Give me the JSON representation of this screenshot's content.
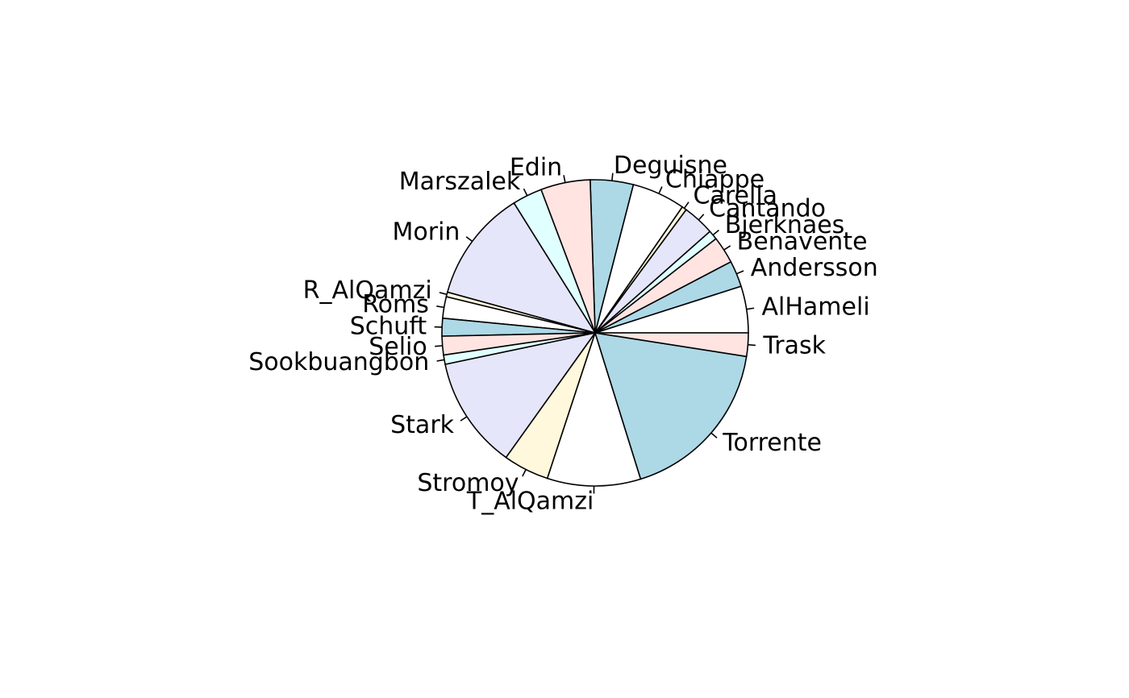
{
  "chart_data": {
    "type": "pie",
    "start": "3 o'clock",
    "direction": "counter-clockwise",
    "title": "",
    "categories": [
      "AlHameli",
      "Andersson",
      "Benavente",
      "Bjerknaes",
      "Cantando",
      "Carella",
      "Chiappe",
      "Deguisne",
      "Edin",
      "Marszalek",
      "Morin",
      "R_AlQamzi",
      "Roms",
      "Schuft",
      "Selio",
      "Sookbuangbon",
      "Stark",
      "Stromoy",
      "T_AlQamzi",
      "Torrente",
      "Trask"
    ],
    "values": [
      5.0,
      2.8,
      2.9,
      1.0,
      3.4,
      0.5,
      5.7,
      4.6,
      5.3,
      3.2,
      12.0,
      0.5,
      2.3,
      1.9,
      2.0,
      1.0,
      12.0,
      4.9,
      10.0,
      18.0,
      2.5
    ],
    "colors": [
      "#ffffff",
      "#add8e6",
      "#ffe4e1",
      "#e0ffff",
      "#e6e6fa",
      "#fff8dc",
      "#ffffff",
      "#add8e6",
      "#ffe4e1",
      "#e0ffff",
      "#e6e6fa",
      "#fff8dc",
      "#ffffff",
      "#add8e6",
      "#ffe4e1",
      "#e0ffff",
      "#e6e6fa",
      "#fff8dc",
      "#ffffff",
      "#add8e6",
      "#ffe4e1"
    ]
  }
}
